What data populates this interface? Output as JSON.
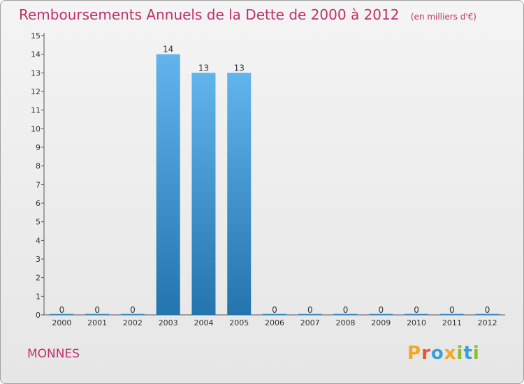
{
  "title": "Remboursements Annuels de la Dette de 2000 à 2012",
  "title_unit": "(en milliers d'€)",
  "commune": "MONNES",
  "logo": {
    "letters": [
      "P",
      "r",
      "o",
      "x",
      "i",
      "t",
      "i"
    ],
    "colors": [
      "#f5a623",
      "#e9542f",
      "#3aa0d8",
      "#f5a623",
      "#8bbd2a",
      "#3aa0d8",
      "#8bbd2a"
    ]
  },
  "colors": {
    "accent": "#c0306c",
    "bar_top": "#62b4ec",
    "bar_bottom": "#2474ad"
  },
  "chart_data": {
    "type": "bar",
    "categories": [
      "2000",
      "2001",
      "2002",
      "2003",
      "2004",
      "2005",
      "2006",
      "2007",
      "2008",
      "2009",
      "2010",
      "2011",
      "2012"
    ],
    "values": [
      0,
      0,
      0,
      14,
      13,
      13,
      0,
      0,
      0,
      0,
      0,
      0,
      0
    ],
    "ylim": [
      0,
      15
    ],
    "yticks": [
      0,
      1,
      2,
      3,
      4,
      5,
      6,
      7,
      8,
      9,
      10,
      11,
      12,
      13,
      14,
      15
    ],
    "grid": false
  }
}
